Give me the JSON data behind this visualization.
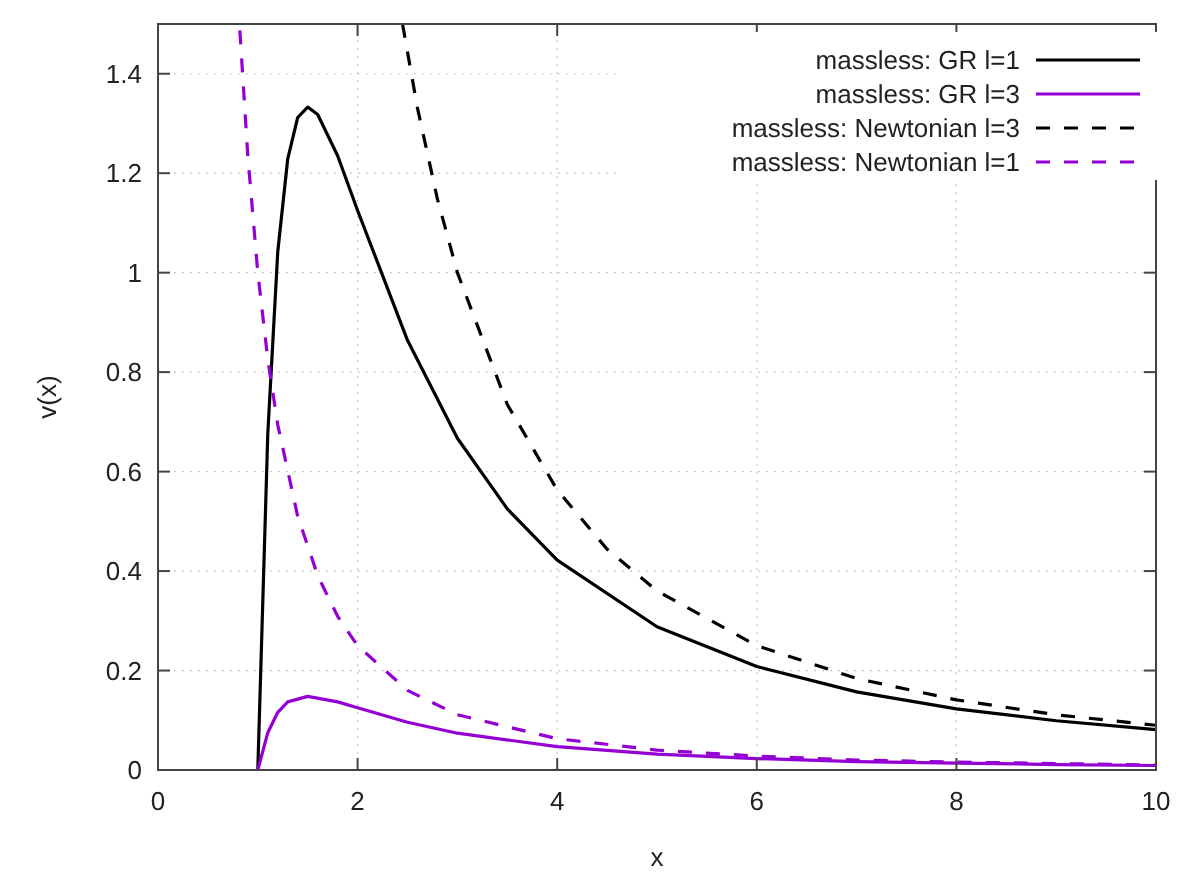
{
  "chart_data": {
    "type": "line",
    "xlabel": "x",
    "ylabel": "v(x)",
    "xlim": [
      0,
      10
    ],
    "ylim": [
      0,
      1.5
    ],
    "xticks": [
      0,
      2,
      4,
      6,
      8,
      10
    ],
    "yticks": [
      0,
      0.2,
      0.4,
      0.6,
      0.8,
      1,
      1.2,
      1.4
    ],
    "grid": true,
    "legend": "top right",
    "marker": "none",
    "series": [
      {
        "name": "massless: GR l=1",
        "color": "#000000",
        "line_style": "solid",
        "x": [
          1,
          1.1,
          1.2,
          1.3,
          1.4,
          1.5,
          1.6,
          1.8,
          2,
          2.5,
          3,
          3.5,
          4,
          5,
          6,
          7,
          8,
          9,
          10
        ],
        "values": [
          0,
          0.676,
          1.042,
          1.229,
          1.312,
          1.333,
          1.318,
          1.235,
          1.125,
          0.864,
          0.667,
          0.525,
          0.422,
          0.288,
          0.208,
          0.157,
          0.123,
          0.099,
          0.081
        ]
      },
      {
        "name": "massless: GR l=3",
        "color": "#9400d3",
        "line_style": "solid",
        "x": [
          1,
          1.1,
          1.2,
          1.3,
          1.5,
          1.8,
          2,
          2.5,
          3,
          4,
          5,
          6,
          7,
          8,
          9,
          10
        ],
        "values": [
          0,
          0.075,
          0.116,
          0.137,
          0.148,
          0.137,
          0.125,
          0.096,
          0.074,
          0.047,
          0.032,
          0.023,
          0.017,
          0.014,
          0.011,
          0.009
        ]
      },
      {
        "name": "massless: Newtonian l=3",
        "color": "#000000",
        "line_style": "dashed",
        "x": [
          2.45,
          2.6,
          2.8,
          3,
          3.5,
          4,
          4.5,
          5,
          6,
          7,
          8,
          9,
          10
        ],
        "values": [
          1.5,
          1.331,
          1.148,
          1,
          0.735,
          0.563,
          0.444,
          0.36,
          0.25,
          0.184,
          0.141,
          0.111,
          0.09
        ]
      },
      {
        "name": "massless: Newtonian l=1",
        "color": "#9400d3",
        "line_style": "dashed",
        "x": [
          0.82,
          0.9,
          1,
          1.1,
          1.2,
          1.4,
          1.6,
          1.8,
          2,
          2.5,
          3,
          4,
          5,
          6,
          7,
          8,
          10
        ],
        "values": [
          1.487,
          1.235,
          1,
          0.826,
          0.694,
          0.51,
          0.391,
          0.309,
          0.25,
          0.16,
          0.111,
          0.063,
          0.04,
          0.028,
          0.02,
          0.016,
          0.01
        ]
      }
    ]
  }
}
